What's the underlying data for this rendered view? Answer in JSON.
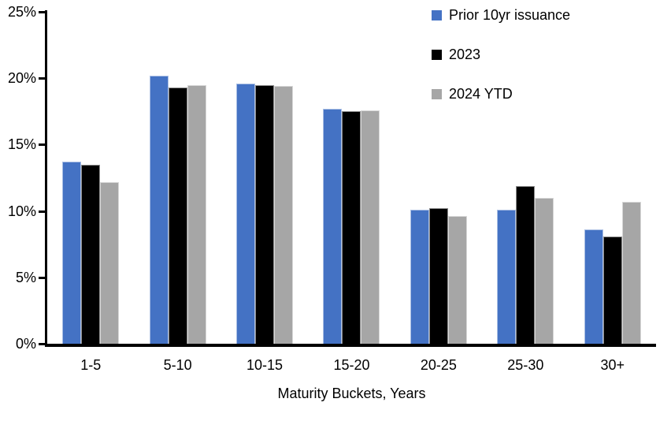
{
  "chart_data": {
    "type": "bar",
    "title": "",
    "categories": [
      "1-5",
      "5-10",
      "10-15",
      "15-20",
      "20-25",
      "25-30",
      "30+"
    ],
    "series": [
      {
        "name": "Prior 10yr issuance",
        "color": "#4472C4",
        "values": [
          13.7,
          20.2,
          19.6,
          17.7,
          10.1,
          10.1,
          8.6
        ]
      },
      {
        "name": "2023",
        "color": "#000000",
        "values": [
          13.5,
          19.3,
          19.5,
          17.5,
          10.2,
          11.9,
          8.1
        ]
      },
      {
        "name": "2024 YTD",
        "color": "#A6A6A6",
        "values": [
          12.2,
          19.5,
          19.4,
          17.6,
          9.6,
          11.0,
          10.7
        ]
      }
    ],
    "xlabel": "Maturity Buckets, Years",
    "ylabel": "",
    "ylim": [
      0,
      25
    ],
    "ytick_step": 5,
    "ytick_labels": [
      "0%",
      "5%",
      "10%",
      "15%",
      "20%",
      "25%"
    ],
    "grid": false,
    "legend_position": "top-right",
    "axis_color": "#000000",
    "background": "#FFFFFF"
  }
}
